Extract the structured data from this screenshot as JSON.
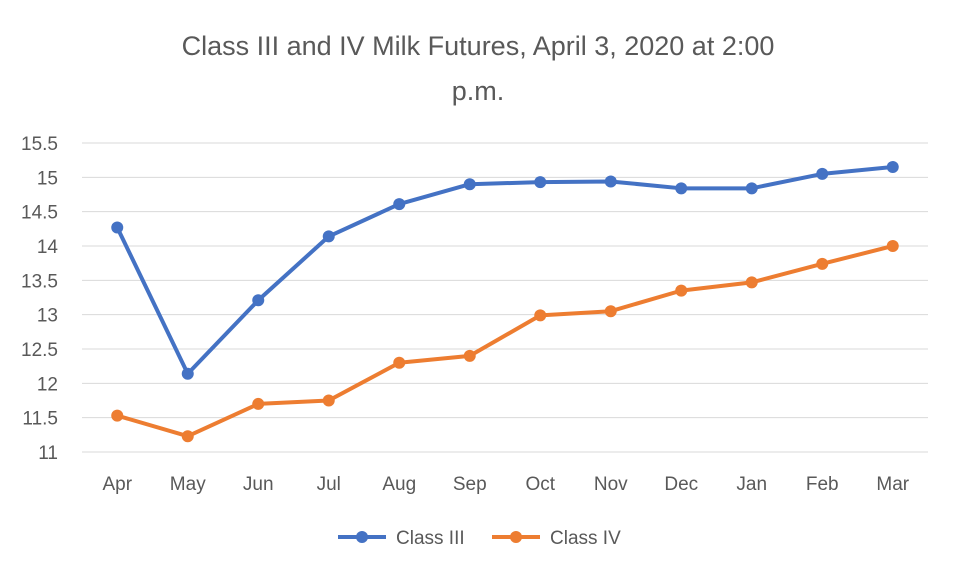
{
  "chart_data": {
    "type": "line",
    "title_line1": "Class III and IV Milk Futures, April 3, 2020 at 2:00",
    "title_line2": "p.m.",
    "xlabel": "",
    "ylabel": "",
    "ylim": [
      11,
      15.5
    ],
    "ytick_step": 0.5,
    "grid": true,
    "legend_position": "bottom",
    "categories": [
      "Apr",
      "May",
      "Jun",
      "Jul",
      "Aug",
      "Sep",
      "Oct",
      "Nov",
      "Dec",
      "Jan",
      "Feb",
      "Mar"
    ],
    "series": [
      {
        "name": "Class III",
        "color": "#4472C4",
        "values": [
          14.27,
          12.14,
          13.21,
          14.14,
          14.61,
          14.9,
          14.93,
          14.94,
          14.84,
          14.84,
          15.05,
          15.15
        ]
      },
      {
        "name": "Class IV",
        "color": "#ED7D31",
        "values": [
          11.53,
          11.23,
          11.7,
          11.75,
          12.3,
          12.4,
          12.99,
          13.05,
          13.35,
          13.47,
          13.74,
          14.0
        ]
      }
    ]
  }
}
